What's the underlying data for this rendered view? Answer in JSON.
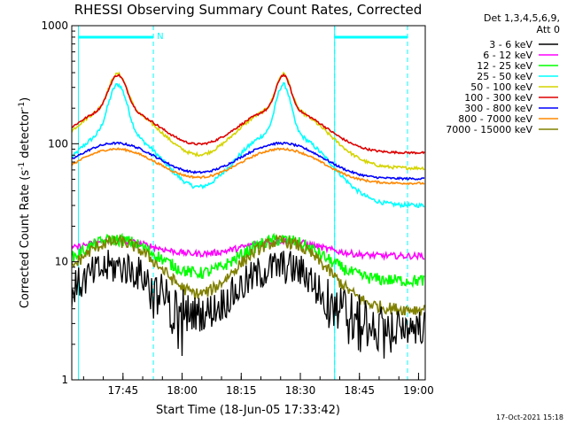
{
  "chart_data": {
    "type": "line",
    "title": "RHESSI Observing Summary Count Rates, Corrected",
    "xlabel": "Start Time (18-Jun-05 17:33:42)",
    "ylabel": "Corrected Count Rate (s",
    "ylabel_sup1": "-1",
    "ylabel_mid": " detector",
    "ylabel_sup2": "-1",
    "ylabel_end": ")",
    "yscale": "log",
    "ylim": [
      1,
      1000
    ],
    "xlim_min": [
      -1.7,
      88
    ],
    "ytick_values": [
      1,
      10,
      100,
      1000
    ],
    "ytick_labels": [
      "1",
      "10",
      "100",
      "1000"
    ],
    "xtick_values": [
      11.3,
      26.3,
      41.3,
      56.3,
      71.3,
      86.3
    ],
    "xtick_labels": [
      "17:45",
      "18:00",
      "18:15",
      "18:30",
      "18:45",
      "19:00"
    ],
    "legend_header": [
      "Det 1,3,4,5,6,9,",
      "Att 0"
    ],
    "legend_position": "right",
    "footer_date": "17-Oct-2021 15:18",
    "flag_label": "N",
    "colors": {
      "cyan_markers": "#00ffff"
    },
    "markers": {
      "dashed_lines_min": [
        19.0,
        65.0,
        83.5
      ],
      "solid_lines_min": [
        0.0,
        65.0
      ],
      "flag_segments": [
        [
          0,
          19.0
        ],
        [
          65.0,
          83.5
        ]
      ]
    },
    "series": [
      {
        "name": "3 - 6 keV",
        "color": "#000000",
        "base": 2.5,
        "peak_gain": 2.5,
        "noise": 0.35,
        "dip": true
      },
      {
        "name": "6 - 12 keV",
        "color": "#ff00ff",
        "base": 11,
        "peak_gain": 0.35,
        "noise": 0.06
      },
      {
        "name": "12 - 25 keV",
        "color": "#00ff00",
        "base": 6.5,
        "peak_gain": 1.3,
        "noise": 0.12
      },
      {
        "name": "25 - 50 keV",
        "color": "#00ffff",
        "base": 25,
        "peak_gain": 4.0,
        "noise": 0.04
      },
      {
        "name": "50 - 100 keV",
        "color": "#d4d400",
        "base": 55,
        "peak_gain": 2.6,
        "noise": 0.03
      },
      {
        "name": "100 - 300 keV",
        "color": "#dd0000",
        "base": 78,
        "peak_gain": 1.5,
        "noise": 0.02
      },
      {
        "name": "300 - 800 keV",
        "color": "#0000ff",
        "base": 48,
        "peak_gain": 1.05,
        "noise": 0.02
      },
      {
        "name": "800 - 7000 keV",
        "color": "#ff8800",
        "base": 44,
        "peak_gain": 1.0,
        "noise": 0.02
      },
      {
        "name": "7000 - 15000 keV",
        "color": "#808000",
        "base": 3.4,
        "peak_gain": 3.2,
        "noise": 0.12
      }
    ]
  }
}
